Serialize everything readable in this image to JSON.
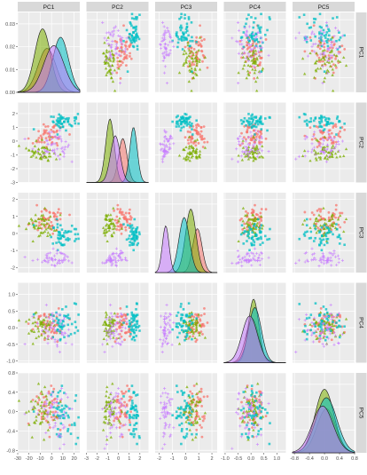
{
  "chart_data": {
    "type": "scatter-matrix",
    "variables": [
      "PC1",
      "PC2",
      "PC3",
      "PC4",
      "PC5"
    ],
    "groups": [
      {
        "color": "#F8766D",
        "shape": "circle"
      },
      {
        "color": "#7CAE00",
        "shape": "triangle"
      },
      {
        "color": "#00BFC4",
        "shape": "square"
      },
      {
        "color": "#C77CFF",
        "shape": "plus"
      }
    ],
    "ranges": {
      "PC1": [
        -30,
        25
      ],
      "PC2": [
        -3,
        2.8
      ],
      "PC3": [
        -2.3,
        2.4
      ],
      "PC4": [
        -1.05,
        1.35
      ],
      "PC5": [
        -0.85,
        0.8
      ]
    },
    "ticks": {
      "PC1": [
        "-30",
        "-20",
        "-10",
        "0",
        "10",
        "20"
      ],
      "PC2": [
        "-3",
        "-2",
        "-1",
        "0",
        "1",
        "2"
      ],
      "PC3": [
        "-2",
        "-1",
        "0",
        "1",
        "2"
      ],
      "PC4": [
        "-1.0",
        "-0.5",
        "0.0",
        "0.5",
        "1.0"
      ],
      "PC5": [
        "-0.8",
        "-0.4",
        "0.0",
        "0.4",
        "0.8"
      ]
    },
    "tick_values": {
      "PC1": [
        -30,
        -20,
        -10,
        0,
        10,
        20
      ],
      "PC2": [
        -3,
        -2,
        -1,
        0,
        1,
        2
      ],
      "PC3": [
        -2,
        -1,
        0,
        1,
        2
      ],
      "PC4": [
        -1.0,
        -0.5,
        0.0,
        0.5,
        1.0
      ],
      "PC5": [
        -0.8,
        -0.4,
        0.0,
        0.4,
        0.8
      ]
    },
    "density_axis": {
      "ticks": [
        "0.00",
        "0.01",
        "0.02",
        "0.03"
      ],
      "tick_values": [
        0.0,
        0.01,
        0.02,
        0.03
      ],
      "range": [
        0,
        0.035
      ]
    },
    "group_means": {
      "PC1": [
        -4,
        -8,
        8,
        2
      ],
      "PC2": [
        0.4,
        -0.8,
        1.4,
        -0.3
      ],
      "PC3": [
        0.9,
        0.4,
        -0.1,
        -1.5
      ],
      "PC4": [
        0.05,
        0.1,
        0.15,
        -0.05
      ],
      "PC5": [
        0.05,
        0.0,
        0.05,
        -0.05
      ]
    },
    "group_sds": {
      "PC1": [
        8,
        7,
        7,
        9
      ],
      "PC2": [
        0.4,
        0.4,
        0.35,
        0.45
      ],
      "PC3": [
        0.35,
        0.4,
        0.4,
        0.25
      ],
      "PC4": [
        0.25,
        0.2,
        0.25,
        0.3
      ],
      "PC5": [
        0.25,
        0.25,
        0.28,
        0.28
      ]
    },
    "points_per_group": 50
  }
}
